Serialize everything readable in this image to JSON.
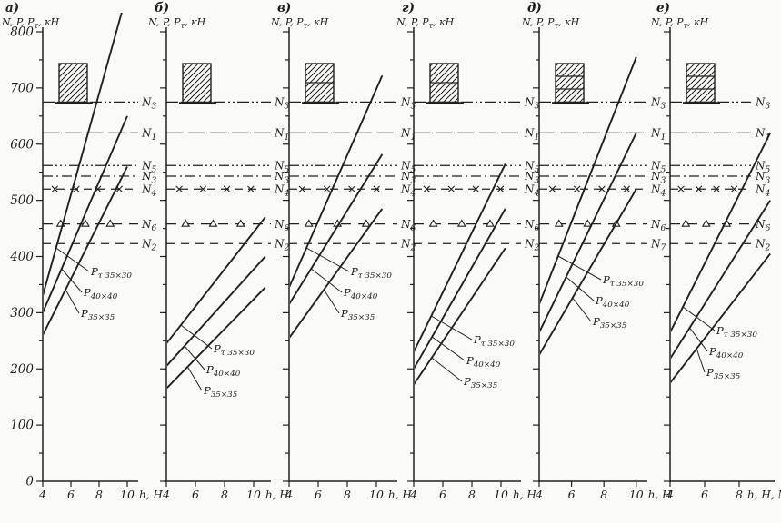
{
  "figure": {
    "background": "#fafaf6",
    "ink": "#23211d"
  },
  "chart_data": [
    {
      "type": "line",
      "panel_label": "а)",
      "y_axis_title": {
        "main": "N, P, P",
        "sub": "τ",
        "unit": ", кН"
      },
      "x_axis_label": "h, Н",
      "x_ticks": [
        4,
        6,
        8,
        10
      ],
      "ylim": [
        0,
        800
      ],
      "y_ticks": [
        800,
        700,
        600,
        500,
        400,
        300,
        200,
        100,
        0
      ],
      "show_y_tick_labels": true,
      "grid": false,
      "column_segments": 1,
      "n_lines": [
        {
          "name": "N3-upper",
          "label": {
            "main": "N",
            "sub": "3"
          },
          "value": 675,
          "style": "dashdotdot"
        },
        {
          "name": "N1",
          "label": {
            "main": "N",
            "sub": "1"
          },
          "value": 620,
          "style": "longdash"
        },
        {
          "name": "N5",
          "label": {
            "main": "N",
            "sub": "5"
          },
          "value": 562,
          "style": "dashdotdotdot"
        },
        {
          "name": "N3-lower",
          "label": {
            "main": "N",
            "sub": "3"
          },
          "value": 543,
          "style": "dashdot"
        },
        {
          "name": "N4",
          "label": {
            "main": "N",
            "sub": "4"
          },
          "value": 520,
          "style": "xmark"
        },
        {
          "name": "N6",
          "label": {
            "main": "N",
            "sub": "6"
          },
          "value": 458,
          "style": "tridash"
        },
        {
          "name": "N2",
          "label": {
            "main": "N",
            "sub": "2"
          },
          "value": 423,
          "style": "dash"
        }
      ],
      "p_lines": [
        {
          "name": "Pt-35x30",
          "label": {
            "main": "P",
            "sub": "τ 35×30"
          },
          "points": [
            [
              4,
              330
            ],
            [
              10,
              870
            ]
          ]
        },
        {
          "name": "P-40x40",
          "label": {
            "main": "P",
            "sub": "40×40"
          },
          "points": [
            [
              4,
              300
            ],
            [
              10,
              650
            ]
          ]
        },
        {
          "name": "P-35x35",
          "label": {
            "main": "P",
            "sub": "35×35"
          },
          "points": [
            [
              4,
              260
            ],
            [
              10,
              560
            ]
          ]
        }
      ]
    },
    {
      "type": "line",
      "panel_label": "б)",
      "y_axis_title": {
        "main": "N, P, P",
        "sub": "τ",
        "unit": ", кН"
      },
      "x_axis_label": "h, Н",
      "x_ticks": [
        4,
        6,
        8,
        10
      ],
      "ylim": [
        0,
        800
      ],
      "y_ticks": [
        800,
        700,
        600,
        500,
        400,
        300,
        200,
        100,
        0
      ],
      "show_y_tick_labels": false,
      "grid": false,
      "column_segments": 1,
      "n_lines": [
        {
          "name": "N3-upper",
          "label": {
            "main": "N",
            "sub": "3"
          },
          "value": 675,
          "style": "dashdotdot"
        },
        {
          "name": "N1",
          "label": {
            "main": "N",
            "sub": "1"
          },
          "value": 620,
          "style": "longdash"
        },
        {
          "name": "N5",
          "label": {
            "main": "N",
            "sub": "5"
          },
          "value": 562,
          "style": "dashdotdotdot"
        },
        {
          "name": "N3-lower",
          "label": {
            "main": "N",
            "sub": "3"
          },
          "value": 543,
          "style": "dashdot"
        },
        {
          "name": "N4",
          "label": {
            "main": "N",
            "sub": "4"
          },
          "value": 520,
          "style": "xmark"
        },
        {
          "name": "N6",
          "label": {
            "main": "N",
            "sub": "6"
          },
          "value": 458,
          "style": "tridash"
        },
        {
          "name": "N2",
          "label": {
            "main": "N",
            "sub": "2"
          },
          "value": 423,
          "style": "dash"
        }
      ],
      "p_lines": [
        {
          "name": "Pt-35x30",
          "label": {
            "main": "P",
            "sub": "τ 35×30"
          },
          "points": [
            [
              4,
              245
            ],
            [
              10.8,
              470
            ]
          ]
        },
        {
          "name": "P-40x40",
          "label": {
            "main": "P",
            "sub": "40×40"
          },
          "points": [
            [
              4,
              205
            ],
            [
              10.8,
              400
            ]
          ]
        },
        {
          "name": "P-35x35",
          "label": {
            "main": "P",
            "sub": "35×35"
          },
          "points": [
            [
              4,
              165
            ],
            [
              10.8,
              345
            ]
          ]
        }
      ]
    },
    {
      "type": "line",
      "panel_label": "в)",
      "y_axis_title": {
        "main": "N, P, P",
        "sub": "τ",
        "unit": ", кН"
      },
      "x_axis_label": "h, Н",
      "x_ticks": [
        4,
        6,
        8,
        10
      ],
      "ylim": [
        0,
        800
      ],
      "y_ticks": [
        800,
        700,
        600,
        500,
        400,
        300,
        200,
        100,
        0
      ],
      "show_y_tick_labels": false,
      "grid": false,
      "column_segments": 2,
      "n_lines": [
        {
          "name": "N3-upper",
          "label": {
            "main": "N",
            "sub": "3"
          },
          "value": 675,
          "style": "dashdotdot"
        },
        {
          "name": "N1",
          "label": {
            "main": "N",
            "sub": "1"
          },
          "value": 620,
          "style": "longdash"
        },
        {
          "name": "N5",
          "label": {
            "main": "N",
            "sub": "5"
          },
          "value": 562,
          "style": "dashdotdotdot"
        },
        {
          "name": "N3-lower",
          "label": {
            "main": "N",
            "sub": "3"
          },
          "value": 543,
          "style": "dashdot"
        },
        {
          "name": "N4",
          "label": {
            "main": "N",
            "sub": "4"
          },
          "value": 520,
          "style": "xmark"
        },
        {
          "name": "N6",
          "label": {
            "main": "N",
            "sub": "6"
          },
          "value": 458,
          "style": "tridash"
        },
        {
          "name": "N2",
          "label": {
            "main": "N",
            "sub": "2"
          },
          "value": 423,
          "style": "dash"
        }
      ],
      "p_lines": [
        {
          "name": "Pt-35x30",
          "label": {
            "main": "P",
            "sub": "τ 35×30"
          },
          "points": [
            [
              4,
              345
            ],
            [
              10.4,
              722
            ]
          ]
        },
        {
          "name": "P-40x40",
          "label": {
            "main": "P",
            "sub": "40×40"
          },
          "points": [
            [
              4,
              315
            ],
            [
              10.4,
              582
            ]
          ]
        },
        {
          "name": "P-35x35",
          "label": {
            "main": "P",
            "sub": "35×35"
          },
          "points": [
            [
              4,
              255
            ],
            [
              10.4,
              485
            ]
          ]
        }
      ]
    },
    {
      "type": "line",
      "panel_label": "г)",
      "y_axis_title": {
        "main": "N, P, P",
        "sub": "τ",
        "unit": ", кН"
      },
      "x_axis_label": "h, Н",
      "x_ticks": [
        4,
        6,
        8,
        10
      ],
      "ylim": [
        0,
        800
      ],
      "y_ticks": [
        800,
        700,
        600,
        500,
        400,
        300,
        200,
        100,
        0
      ],
      "show_y_tick_labels": false,
      "grid": false,
      "column_segments": 2,
      "n_lines": [
        {
          "name": "N3-upper",
          "label": {
            "main": "N",
            "sub": "3"
          },
          "value": 675,
          "style": "dashdotdot"
        },
        {
          "name": "N1",
          "label": {
            "main": "N",
            "sub": "1"
          },
          "value": 620,
          "style": "longdash"
        },
        {
          "name": "N5",
          "label": {
            "main": "N",
            "sub": "5"
          },
          "value": 562,
          "style": "dashdotdotdot"
        },
        {
          "name": "N3-lower",
          "label": {
            "main": "N",
            "sub": "3"
          },
          "value": 543,
          "style": "dashdot"
        },
        {
          "name": "N4",
          "label": {
            "main": "N",
            "sub": "4"
          },
          "value": 520,
          "style": "xmark"
        },
        {
          "name": "N6",
          "label": {
            "main": "N",
            "sub": "6"
          },
          "value": 458,
          "style": "tridash"
        },
        {
          "name": "N2",
          "label": {
            "main": "N",
            "sub": "2"
          },
          "value": 423,
          "style": "dash"
        }
      ],
      "p_lines": [
        {
          "name": "Pt-35x30",
          "label": {
            "main": "P",
            "sub": "τ 35×30"
          },
          "points": [
            [
              4,
              230
            ],
            [
              10.3,
              565
            ]
          ]
        },
        {
          "name": "P-40x40",
          "label": {
            "main": "P",
            "sub": "40×40"
          },
          "points": [
            [
              4,
              200
            ],
            [
              10.3,
              485
            ]
          ]
        },
        {
          "name": "P-35x35",
          "label": {
            "main": "P",
            "sub": "35×35"
          },
          "points": [
            [
              4,
              172
            ],
            [
              10.3,
              415
            ]
          ]
        }
      ]
    },
    {
      "type": "line",
      "panel_label": "д)",
      "y_axis_title": {
        "main": "N, P, P",
        "sub": "τ",
        "unit": ", кН"
      },
      "x_axis_label": "h, Н",
      "x_ticks": [
        4,
        6,
        8,
        10
      ],
      "ylim": [
        0,
        800
      ],
      "y_ticks": [
        800,
        700,
        600,
        500,
        400,
        300,
        200,
        100,
        0
      ],
      "show_y_tick_labels": false,
      "grid": false,
      "column_segments": 3,
      "n_lines": [
        {
          "name": "N3-upper",
          "label": {
            "main": "N",
            "sub": "3"
          },
          "value": 675,
          "style": "dashdotdot"
        },
        {
          "name": "N1",
          "label": {
            "main": "N",
            "sub": "1"
          },
          "value": 620,
          "style": "longdash"
        },
        {
          "name": "N5",
          "label": {
            "main": "N",
            "sub": "5"
          },
          "value": 562,
          "style": "dashdotdotdot"
        },
        {
          "name": "N3-lower",
          "label": {
            "main": "N",
            "sub": "3"
          },
          "value": 543,
          "style": "dashdot"
        },
        {
          "name": "N4",
          "label": {
            "main": "N",
            "sub": "4"
          },
          "value": 520,
          "style": "xmark"
        },
        {
          "name": "N6",
          "label": {
            "main": "N",
            "sub": "6"
          },
          "value": 458,
          "style": "tridash"
        },
        {
          "name": "N7",
          "label": {
            "main": "N",
            "sub": "7"
          },
          "value": 423,
          "style": "dash"
        }
      ],
      "p_lines": [
        {
          "name": "Pt-35x30",
          "label": {
            "main": "P",
            "sub": "τ 35×30"
          },
          "points": [
            [
              4,
              315
            ],
            [
              10,
              755
            ]
          ]
        },
        {
          "name": "P-40x40",
          "label": {
            "main": "P",
            "sub": "40×40"
          },
          "points": [
            [
              4,
              265
            ],
            [
              10,
              620
            ]
          ]
        },
        {
          "name": "P-35x35",
          "label": {
            "main": "P",
            "sub": "35×35"
          },
          "points": [
            [
              4,
              225
            ],
            [
              10,
              520
            ]
          ]
        }
      ]
    },
    {
      "type": "line",
      "panel_label": "е)",
      "y_axis_title": {
        "main": "N, P, P",
        "sub": "τ",
        "unit": ", кН"
      },
      "x_axis_label": "h, Н, М",
      "x_ticks": [
        4,
        6,
        8
      ],
      "ylim": [
        0,
        800
      ],
      "y_ticks": [
        800,
        700,
        600,
        500,
        400,
        300,
        200,
        100,
        0
      ],
      "show_y_tick_labels": false,
      "grid": false,
      "column_segments": 3,
      "n_lines": [
        {
          "name": "N3-upper",
          "label": {
            "main": "N",
            "sub": "3"
          },
          "value": 675,
          "style": "dashdotdot"
        },
        {
          "name": "N1",
          "label": {
            "main": "N",
            "sub": "1"
          },
          "value": 620,
          "style": "longdash"
        },
        {
          "name": "N5",
          "label": {
            "main": "N",
            "sub": "5"
          },
          "value": 562,
          "style": "dashdotdotdot"
        },
        {
          "name": "N3-lower",
          "label": {
            "main": "N",
            "sub": "3"
          },
          "value": 543,
          "style": "dashdot"
        },
        {
          "name": "N4",
          "label": {
            "main": "N",
            "sub": "4"
          },
          "value": 520,
          "style": "xmark"
        },
        {
          "name": "N6",
          "label": {
            "main": "N",
            "sub": "6"
          },
          "value": 458,
          "style": "tridash"
        },
        {
          "name": "N2",
          "label": {
            "main": "N",
            "sub": "2"
          },
          "value": 423,
          "style": "dash"
        }
      ],
      "p_lines": [
        {
          "name": "Pt-35x30",
          "label": {
            "main": "P",
            "sub": "τ 35×30"
          },
          "points": [
            [
              4,
              265
            ],
            [
              9.8,
              620
            ]
          ]
        },
        {
          "name": "P-40x40",
          "label": {
            "main": "P",
            "sub": "40×40"
          },
          "points": [
            [
              4,
              218
            ],
            [
              9.8,
              500
            ]
          ]
        },
        {
          "name": "P-35x35",
          "label": {
            "main": "P",
            "sub": "35×35"
          },
          "points": [
            [
              4,
              175
            ],
            [
              9.8,
              405
            ]
          ]
        }
      ]
    }
  ]
}
